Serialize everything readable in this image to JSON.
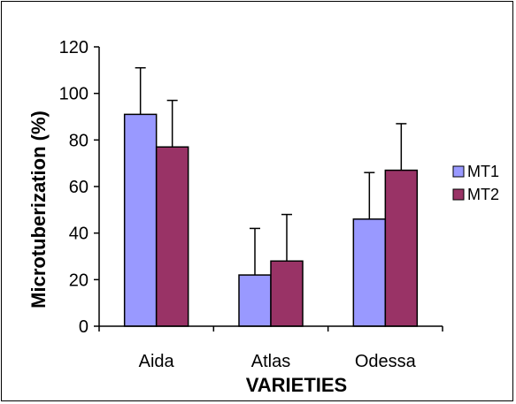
{
  "chart_data": {
    "type": "bar",
    "title": "",
    "xlabel": "VARIETIES",
    "ylabel": "Microtuberization (%)",
    "ylim": [
      0,
      120
    ],
    "yticks": [
      0,
      20,
      40,
      60,
      80,
      100,
      120
    ],
    "categories": [
      "Aida",
      "Atlas",
      "Odessa"
    ],
    "series": [
      {
        "name": "MT1",
        "color": "#9999ff",
        "values": [
          91,
          22,
          46
        ],
        "errors": [
          20,
          20,
          20
        ]
      },
      {
        "name": "MT2",
        "color": "#993366",
        "values": [
          77,
          28,
          67
        ],
        "errors": [
          20,
          20,
          20
        ]
      }
    ],
    "error_bars": true,
    "grid": false,
    "legend_position": "right"
  }
}
